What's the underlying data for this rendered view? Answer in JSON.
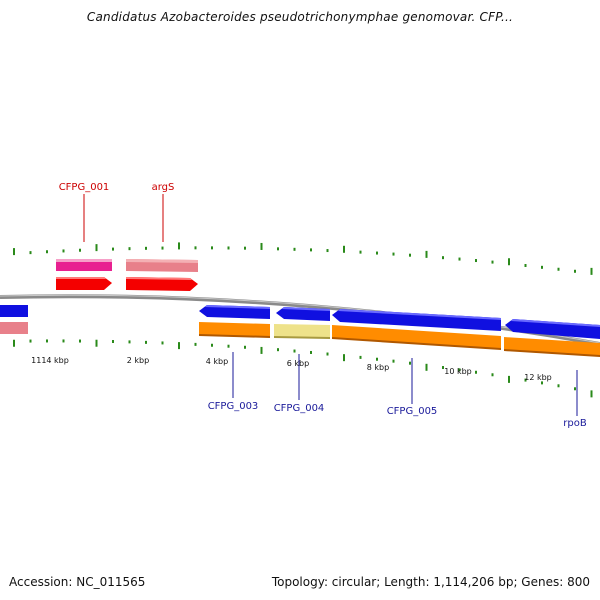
{
  "title": "Candidatus Azobacteroides pseudotrichonymphae genomovar. CFP...",
  "footer": {
    "accession": "Accession: NC_011565",
    "info": "Topology: circular; Length: 1,114,206 bp; Genes: 800"
  },
  "colors": {
    "green_tick": "#2a8a1a",
    "red_label": "#cc0000",
    "blue_label": "#1a1a9a",
    "backbone": "#8a8a8a",
    "gene_blue": "#1010e0",
    "gene_red": "#f40000",
    "cds_orange": "#ff8c00",
    "cds_pink": "#e8789a",
    "cds_magenta": "#e82090",
    "cds_khaki": "#eee28a"
  },
  "scale_labels": [
    "1114 kbp",
    "2 kbp",
    "4 kbp",
    "6 kbp",
    "8 kbp",
    "10 kbp",
    "12 kbp"
  ],
  "gene_labels_top": [
    "CFPG_001",
    "argS"
  ],
  "gene_labels_bottom": [
    "CFPG_003",
    "CFPG_004",
    "CFPG_005",
    "rpoB"
  ]
}
